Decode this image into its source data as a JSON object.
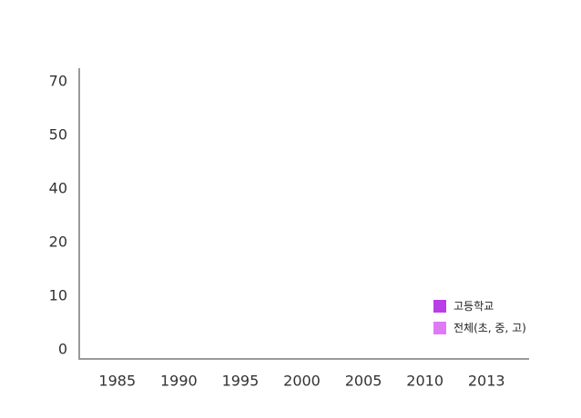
{
  "chart_data": {
    "type": "bar",
    "categories": [
      "1985",
      "1990",
      "1995",
      "2000",
      "2005",
      "2010",
      "2013"
    ],
    "series": [
      {
        "name": "고등학교",
        "color": "#b93ee8",
        "values": [
          null,
          null,
          null,
          null,
          null,
          null,
          null
        ]
      },
      {
        "name": "전체(초, 중, 고)",
        "color": "#df7af5",
        "values": [
          null,
          null,
          null,
          null,
          null,
          null,
          null
        ]
      }
    ],
    "yticks": [
      0,
      10,
      20,
      40,
      50,
      70
    ],
    "legend": "lower right"
  }
}
